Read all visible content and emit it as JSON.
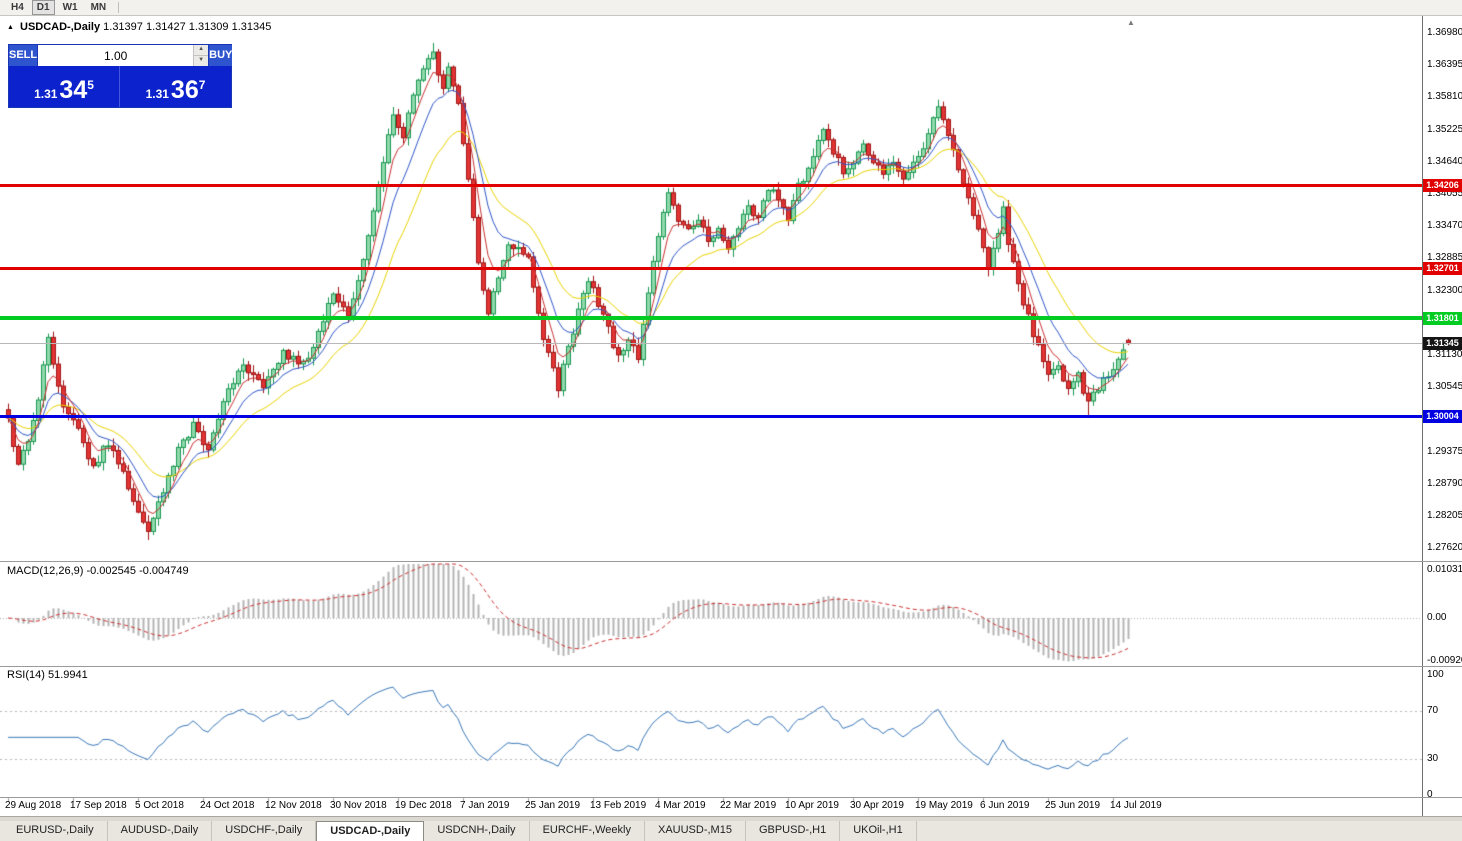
{
  "toolbar": {
    "timeframes": [
      {
        "label": "H4",
        "active": false
      },
      {
        "label": "D1",
        "active": true
      },
      {
        "label": "W1",
        "active": false
      },
      {
        "label": "MN",
        "active": false
      }
    ]
  },
  "chart": {
    "title_marker": "▲",
    "symbol_title": "USDCAD-,Daily",
    "ohlc_text": "1.31397 1.31427 1.31309 1.31345",
    "shift_marker": "▲",
    "trade_panel": {
      "sell_label": "SELL",
      "buy_label": "BUY",
      "volume": "1.00",
      "spin_up": "▲",
      "spin_down": "▼",
      "sell_price_small": "1.31",
      "sell_price_big": "34",
      "sell_price_sup": "5",
      "buy_price_small": "1.31",
      "buy_price_big": "36",
      "buy_price_sup": "7"
    },
    "price_axis": [
      "1.36980",
      "1.36395",
      "1.35810",
      "1.35225",
      "1.34640",
      "1.34055",
      "1.33470",
      "1.32885",
      "1.32300",
      "1.31715",
      "1.31130",
      "1.30545",
      "1.29960",
      "1.29375",
      "1.28790",
      "1.28205",
      "1.27620"
    ],
    "hlines": [
      {
        "label": "1.34206",
        "value": 1.34206,
        "color": "#e00000",
        "thickness": 3
      },
      {
        "label": "1.32701",
        "value": 1.32701,
        "color": "#e00000",
        "thickness": 3
      },
      {
        "label": "1.31801",
        "value": 1.31801,
        "color": "#00cc22",
        "thickness": 4
      },
      {
        "label": "1.30004",
        "value": 1.30004,
        "color": "#0000e0",
        "thickness": 3
      }
    ],
    "current_price": {
      "label": "1.31345",
      "value": 1.31345,
      "line_color": "#b8b8b8",
      "badge_color": "#141414"
    }
  },
  "macd": {
    "label": "MACD(12,26,9) -0.002545 -0.004749",
    "axis": [
      {
        "text": "0.010311",
        "value": 0.010311
      },
      {
        "text": "0.00",
        "value": 0
      },
      {
        "text": "-0.009203",
        "value": -0.009203
      }
    ]
  },
  "rsi": {
    "label": "RSI(14) 51.9941",
    "axis": [
      {
        "text": "100",
        "value": 100
      },
      {
        "text": "70",
        "value": 70
      },
      {
        "text": "30",
        "value": 30
      },
      {
        "text": "0",
        "value": 0
      }
    ],
    "levels": [
      70,
      30
    ]
  },
  "date_axis": [
    "29 Aug 2018",
    "17 Sep 2018",
    "5 Oct 2018",
    "24 Oct 2018",
    "12 Nov 2018",
    "30 Nov 2018",
    "19 Dec 2018",
    "7 Jan 2019",
    "25 Jan 2019",
    "13 Feb 2019",
    "4 Mar 2019",
    "22 Mar 2019",
    "10 Apr 2019",
    "30 Apr 2019",
    "19 May 2019",
    "6 Jun 2019",
    "25 Jun 2019",
    "14 Jul 2019"
  ],
  "tabs": [
    {
      "label": "EURUSD-,Daily",
      "active": false
    },
    {
      "label": "AUDUSD-,Daily",
      "active": false
    },
    {
      "label": "USDCHF-,Daily",
      "active": false
    },
    {
      "label": "USDCAD-,Daily",
      "active": true
    },
    {
      "label": "USDCNH-,Daily",
      "active": false
    },
    {
      "label": "EURCHF-,Weekly",
      "active": false
    },
    {
      "label": "XAUUSD-,M15",
      "active": false
    },
    {
      "label": "GBPUSD-,H1",
      "active": false
    },
    {
      "label": "UKOil-,H1",
      "active": false
    }
  ],
  "chart_data": {
    "type": "candlestick",
    "symbol": "USDCAD-",
    "timeframe": "Daily",
    "last_ohlc": {
      "open": 1.31397,
      "high": 1.31427,
      "low": 1.31309,
      "close": 1.31345
    },
    "ylim": [
      1.2762,
      1.3698
    ],
    "x_range": [
      "29 Aug 2018",
      "14 Jul 2019"
    ],
    "horizontal_levels": [
      1.34206,
      1.32701,
      1.31801,
      1.30004
    ],
    "indicators": {
      "macd": {
        "fast": 12,
        "slow": 26,
        "signal": 9,
        "main_value": -0.002545,
        "signal_value": -0.004749,
        "axis_max": 0.010311,
        "axis_min": -0.009203
      },
      "rsi": {
        "period": 14,
        "value": 51.9941
      }
    },
    "moving_averages": [
      {
        "period": 20,
        "color": "#e8d200"
      },
      {
        "period": 10,
        "color": "#2f55c8"
      },
      {
        "period": 5,
        "color": "#c83030"
      }
    ],
    "candle_style": {
      "up_fill": "#8fd9ac",
      "up_stroke": "#1a9850",
      "down_fill": "#e23434",
      "down_stroke": "#a01515",
      "histogram": "#b4b4b4",
      "signal_line": "#cc3333",
      "rsi_line": "#3a78b8"
    },
    "candle_count": 225,
    "price_path": [
      [
        0,
        1.2995
      ],
      [
        2,
        1.2915
      ],
      [
        5,
        1.299
      ],
      [
        8,
        1.314
      ],
      [
        11,
        1.3015
      ],
      [
        14,
        1.2975
      ],
      [
        17,
        1.291
      ],
      [
        20,
        1.2955
      ],
      [
        23,
        1.2895
      ],
      [
        26,
        1.282
      ],
      [
        28,
        1.279
      ],
      [
        31,
        1.2865
      ],
      [
        34,
        1.294
      ],
      [
        37,
        1.2985
      ],
      [
        40,
        1.2945
      ],
      [
        43,
        1.3035
      ],
      [
        47,
        1.309
      ],
      [
        51,
        1.305
      ],
      [
        55,
        1.312
      ],
      [
        59,
        1.3095
      ],
      [
        63,
        1.3175
      ],
      [
        65,
        1.323
      ],
      [
        68,
        1.319
      ],
      [
        71,
        1.329
      ],
      [
        73,
        1.337
      ],
      [
        75,
        1.346
      ],
      [
        77,
        1.3555
      ],
      [
        79,
        1.3515
      ],
      [
        81,
        1.3585
      ],
      [
        83,
        1.3635
      ],
      [
        85,
        1.3655
      ],
      [
        87,
        1.3605
      ],
      [
        88,
        1.3635
      ],
      [
        90,
        1.3565
      ],
      [
        92,
        1.344
      ],
      [
        94,
        1.328
      ],
      [
        96,
        1.319
      ],
      [
        98,
        1.326
      ],
      [
        100,
        1.332
      ],
      [
        102,
        1.33
      ],
      [
        104,
        1.3285
      ],
      [
        106,
        1.318
      ],
      [
        108,
        1.311
      ],
      [
        110,
        1.3055
      ],
      [
        112,
        1.312
      ],
      [
        114,
        1.32
      ],
      [
        116,
        1.3245
      ],
      [
        118,
        1.321
      ],
      [
        120,
        1.316
      ],
      [
        122,
        1.311
      ],
      [
        124,
        1.314
      ],
      [
        126,
        1.311
      ],
      [
        128,
        1.322
      ],
      [
        130,
        1.333
      ],
      [
        132,
        1.341
      ],
      [
        134,
        1.336
      ],
      [
        136,
        1.334
      ],
      [
        138,
        1.336
      ],
      [
        140,
        1.332
      ],
      [
        142,
        1.334
      ],
      [
        144,
        1.331
      ],
      [
        146,
        1.335
      ],
      [
        148,
        1.339
      ],
      [
        150,
        1.336
      ],
      [
        152,
        1.342
      ],
      [
        154,
        1.339
      ],
      [
        156,
        1.336
      ],
      [
        158,
        1.342
      ],
      [
        160,
        1.345
      ],
      [
        162,
        1.35
      ],
      [
        163,
        1.353
      ],
      [
        165,
        1.348
      ],
      [
        167,
        1.345
      ],
      [
        169,
        1.346
      ],
      [
        171,
        1.349
      ],
      [
        173,
        1.346
      ],
      [
        175,
        1.344
      ],
      [
        177,
        1.347
      ],
      [
        179,
        1.344
      ],
      [
        181,
        1.346
      ],
      [
        183,
        1.348
      ],
      [
        185,
        1.354
      ],
      [
        186,
        1.3565
      ],
      [
        188,
        1.351
      ],
      [
        190,
        1.345
      ],
      [
        192,
        1.34
      ],
      [
        194,
        1.334
      ],
      [
        196,
        1.327
      ],
      [
        198,
        1.334
      ],
      [
        199,
        1.339
      ],
      [
        200,
        1.332
      ],
      [
        202,
        1.324
      ],
      [
        204,
        1.318
      ],
      [
        206,
        1.313
      ],
      [
        208,
        1.3075
      ],
      [
        210,
        1.309
      ],
      [
        212,
        1.305
      ],
      [
        214,
        1.3075
      ],
      [
        216,
        1.303
      ],
      [
        218,
        1.3055
      ],
      [
        220,
        1.308
      ],
      [
        222,
        1.311
      ],
      [
        224,
        1.31345
      ]
    ],
    "wick_overrides": [
      {
        "i": 85,
        "high": 1.368
      },
      {
        "i": 28,
        "low": 1.2777
      },
      {
        "i": 216,
        "low": 1.2999
      }
    ]
  }
}
